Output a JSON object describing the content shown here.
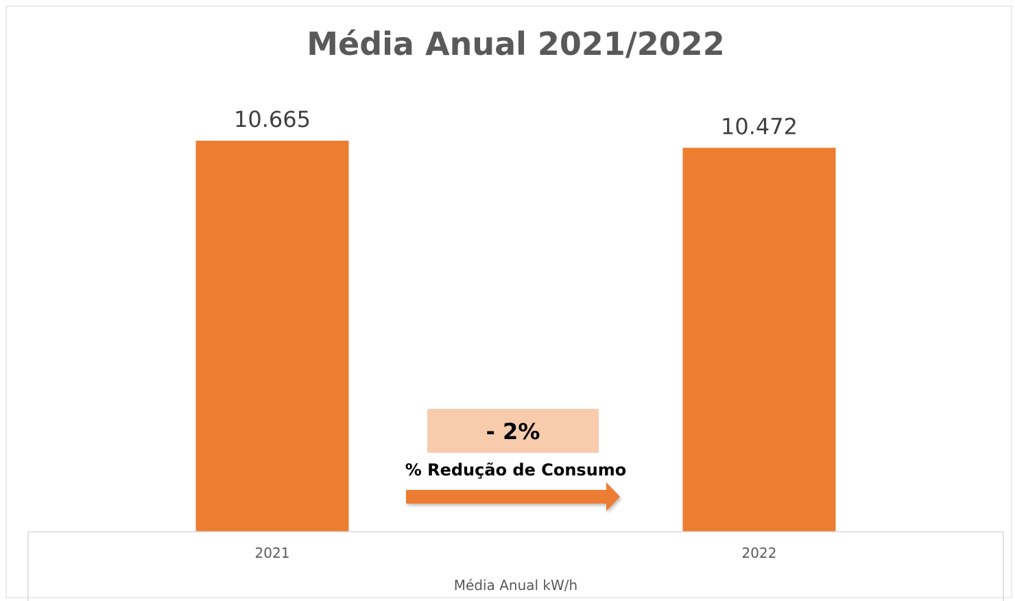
{
  "chart_data": {
    "type": "bar",
    "title": "Média Anual 2021/2022",
    "categories": [
      "2021",
      "2022"
    ],
    "values": [
      10665,
      10472
    ],
    "value_labels": [
      "10.665",
      "10.472"
    ],
    "xlabel": "Média Anual kW/h",
    "ylabel": "",
    "ylim": [
      0,
      10760
    ],
    "grid": false,
    "legend": "none",
    "bar_color": "#ED7D31",
    "annotation": {
      "badge": "- 2%",
      "caption": "% Redução de Consumo",
      "badge_color": "#F8CBAD",
      "arrow_color": "#ED7D31"
    }
  }
}
